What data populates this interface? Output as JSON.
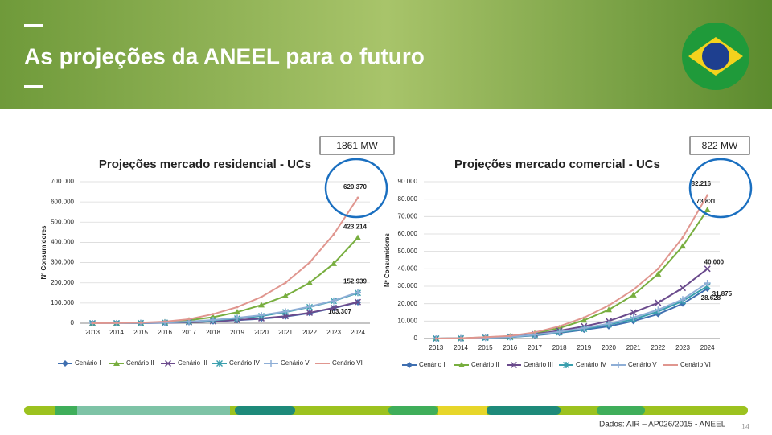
{
  "slide": {
    "title": "As projeções da ANEEL para o futuro",
    "source": "Dados: AIR – AP026/2015 - ANEEL",
    "page": "14"
  },
  "chart_data": [
    {
      "type": "line",
      "title": "Projeções mercado residencial - UCs",
      "ylabel": "Nº Consumidores",
      "annotation": "1861 MW",
      "categories": [
        "2013",
        "2014",
        "2015",
        "2016",
        "2017",
        "2018",
        "2019",
        "2020",
        "2021",
        "2022",
        "2023",
        "2024"
      ],
      "ylim": [
        0,
        700000
      ],
      "yticks": [
        0,
        {
          "value": 100000,
          "label": "100.000"
        },
        {
          "value": 200000,
          "label": "200.000"
        },
        {
          "value": 300000,
          "label": "300.000"
        },
        {
          "value": 400000,
          "label": "400.000"
        },
        {
          "value": 500000,
          "label": "500.000"
        },
        {
          "value": 600000,
          "label": "600.000"
        },
        {
          "value": 700000,
          "label": "700.000"
        }
      ],
      "grid": true,
      "series": [
        {
          "name": "Cenário I",
          "color": "#3f6fb0",
          "marker": "diamond",
          "values": [
            0,
            0,
            500,
            2000,
            5000,
            9000,
            15000,
            22000,
            33000,
            50000,
            75000,
            103307
          ],
          "value_labels": [
            null,
            null,
            null,
            null,
            null,
            null,
            null,
            null,
            null,
            null,
            null,
            "103.307"
          ]
        },
        {
          "name": "Cenário II",
          "color": "#78ae3f",
          "marker": "triangle",
          "values": [
            0,
            1000,
            2000,
            6000,
            15000,
            30000,
            55000,
            90000,
            135000,
            200000,
            295000,
            423214
          ],
          "value_labels": [
            null,
            null,
            null,
            null,
            null,
            null,
            null,
            null,
            null,
            null,
            null,
            "423.214"
          ]
        },
        {
          "name": "Cenário III",
          "color": "#6a4a8c",
          "marker": "x",
          "values": [
            0,
            0,
            500,
            2000,
            5000,
            9000,
            16000,
            24000,
            35000,
            52000,
            76000,
            105000
          ]
        },
        {
          "name": "Cenário IV",
          "color": "#3a9fae",
          "marker": "star",
          "values": [
            0,
            0,
            1000,
            3000,
            7000,
            14000,
            24000,
            36000,
            55000,
            80000,
            110000,
            150000
          ]
        },
        {
          "name": "Cenário V",
          "color": "#8eaed6",
          "marker": "plus",
          "values": [
            0,
            0,
            1000,
            3000,
            8000,
            16000,
            27000,
            40000,
            58000,
            82000,
            112000,
            152939
          ],
          "value_labels": [
            null,
            null,
            null,
            null,
            null,
            null,
            null,
            null,
            null,
            null,
            null,
            "152.939"
          ]
        },
        {
          "name": "Cenário VI",
          "color": "#e0968f",
          "marker": "none",
          "values": [
            0,
            1000,
            3000,
            8000,
            20000,
            45000,
            80000,
            130000,
            200000,
            300000,
            440000,
            620370
          ],
          "value_labels": [
            null,
            null,
            null,
            null,
            null,
            null,
            null,
            null,
            null,
            null,
            null,
            "620.370"
          ]
        }
      ]
    },
    {
      "type": "line",
      "title": "Projeções mercado comercial - UCs",
      "ylabel": "Nº Consumidores",
      "annotation": "822 MW",
      "categories": [
        "2013",
        "2014",
        "2015",
        "2016",
        "2017",
        "2018",
        "2019",
        "2020",
        "2021",
        "2022",
        "2023",
        "2024"
      ],
      "ylim": [
        0,
        90000
      ],
      "yticks": [
        0,
        {
          "value": 10000,
          "label": "10.000"
        },
        {
          "value": 20000,
          "label": "20.000"
        },
        {
          "value": 30000,
          "label": "30.000"
        },
        {
          "value": 40000,
          "label": "40.000"
        },
        {
          "value": 50000,
          "label": "50.000"
        },
        {
          "value": 60000,
          "label": "60.000"
        },
        {
          "value": 70000,
          "label": "70.000"
        },
        {
          "value": 80000,
          "label": "80.000"
        },
        {
          "value": 90000,
          "label": "90.000"
        }
      ],
      "grid": true,
      "series": [
        {
          "name": "Cenário I",
          "color": "#3f6fb0",
          "marker": "diamond",
          "values": [
            0,
            100,
            400,
            800,
            1800,
            3200,
            5000,
            7000,
            10000,
            14000,
            20000,
            28628
          ],
          "value_labels": [
            null,
            null,
            null,
            null,
            null,
            null,
            null,
            null,
            null,
            null,
            null,
            "28.628"
          ]
        },
        {
          "name": "Cenário II",
          "color": "#78ae3f",
          "marker": "triangle",
          "values": [
            0,
            200,
            700,
            1300,
            3000,
            6000,
            10500,
            16500,
            25000,
            37000,
            53000,
            73831
          ],
          "value_labels": [
            null,
            null,
            null,
            null,
            null,
            null,
            null,
            null,
            null,
            null,
            null,
            "73.831"
          ]
        },
        {
          "name": "Cenário III",
          "color": "#6a4a8c",
          "marker": "x",
          "values": [
            0,
            100,
            500,
            1000,
            2500,
            4500,
            7000,
            10000,
            15000,
            20500,
            29000,
            40000
          ],
          "value_labels": [
            null,
            null,
            null,
            null,
            null,
            null,
            null,
            null,
            null,
            null,
            null,
            "40.000"
          ]
        },
        {
          "name": "Cenário IV",
          "color": "#3a9fae",
          "marker": "star",
          "values": [
            0,
            100,
            400,
            800,
            2000,
            3500,
            5500,
            8000,
            11000,
            15500,
            21500,
            30000
          ]
        },
        {
          "name": "Cenário V",
          "color": "#8eaed6",
          "marker": "plus",
          "values": [
            0,
            100,
            400,
            900,
            2200,
            3800,
            6000,
            8500,
            12000,
            16500,
            22500,
            31875
          ],
          "value_labels": [
            null,
            null,
            null,
            null,
            null,
            null,
            null,
            null,
            null,
            null,
            null,
            "31.875"
          ]
        },
        {
          "name": "Cenário VI",
          "color": "#e0968f",
          "marker": "none",
          "values": [
            0,
            200,
            800,
            1500,
            3500,
            7000,
            12000,
            19000,
            28000,
            40000,
            58000,
            82216
          ],
          "value_labels": [
            null,
            null,
            null,
            null,
            null,
            null,
            null,
            null,
            null,
            null,
            null,
            "82.216"
          ]
        }
      ]
    }
  ]
}
